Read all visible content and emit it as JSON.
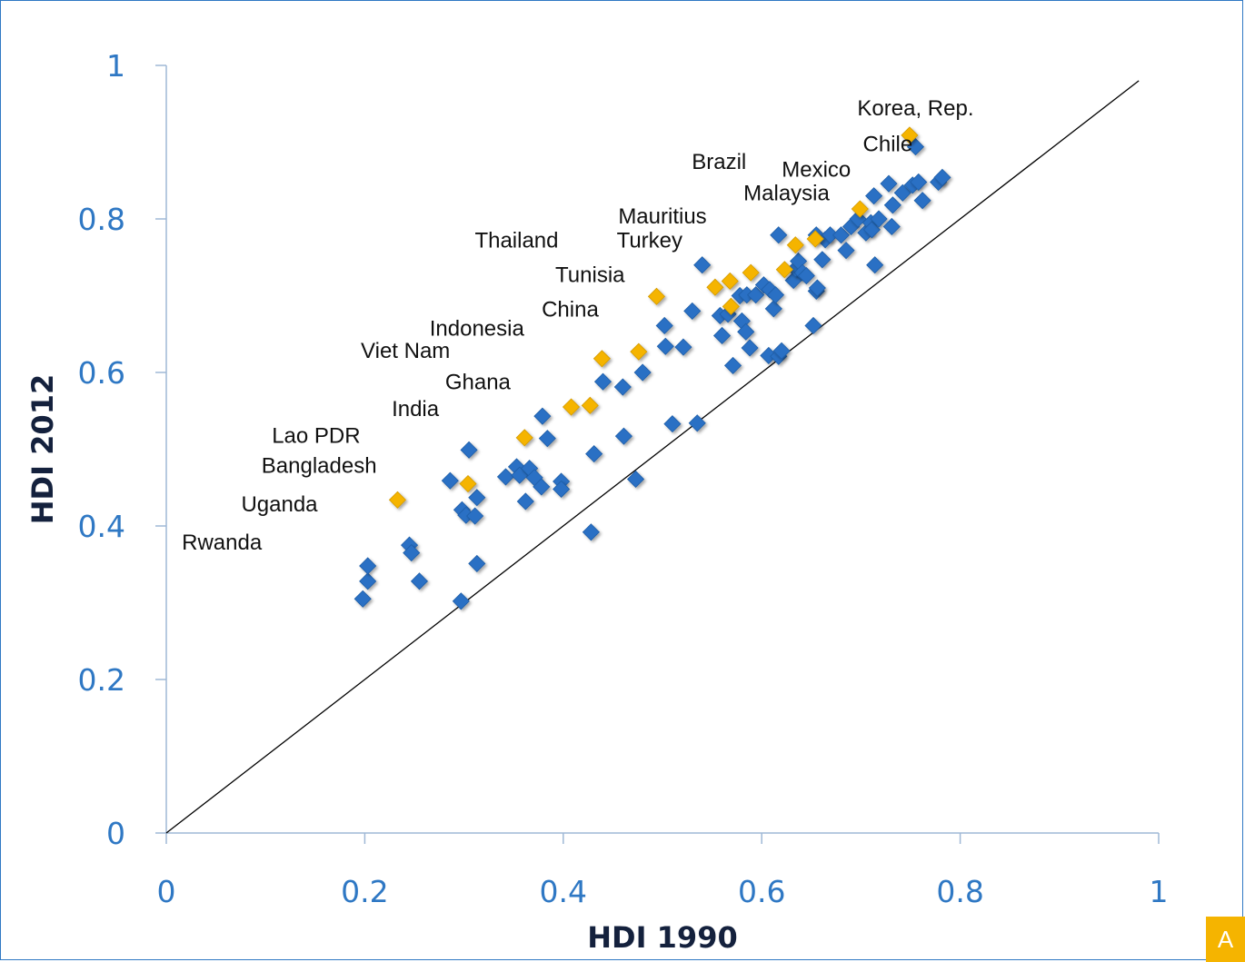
{
  "chart_data": {
    "type": "scatter",
    "xlabel": "HDI 1990",
    "ylabel": "HDI 2012",
    "xlim": [
      0,
      1
    ],
    "ylim": [
      0,
      1
    ],
    "x_ticks": [
      "0",
      "0.2",
      "0.4",
      "0.6",
      "0.8",
      "1"
    ],
    "y_ticks": [
      "0",
      "0.2",
      "0.4",
      "0.6",
      "0.8",
      "1"
    ],
    "grid": false,
    "reference_line": "y = x",
    "colors": {
      "axis": "#9fb8d6",
      "ticks": "#2f78c4",
      "others": "#2a6fc4",
      "highlighted": "#f5b400",
      "line": "#000000"
    },
    "series": [
      {
        "points": [
          [
            0.198,
            0.305
          ],
          [
            0.203,
            0.328
          ],
          [
            0.203,
            0.348
          ],
          [
            0.245,
            0.375
          ],
          [
            0.247,
            0.365
          ],
          [
            0.255,
            0.328
          ],
          [
            0.286,
            0.459
          ],
          [
            0.297,
            0.302
          ],
          [
            0.298,
            0.421
          ],
          [
            0.302,
            0.414
          ],
          [
            0.305,
            0.499
          ],
          [
            0.311,
            0.413
          ],
          [
            0.313,
            0.437
          ],
          [
            0.313,
            0.351
          ],
          [
            0.342,
            0.464
          ],
          [
            0.353,
            0.477
          ],
          [
            0.356,
            0.466
          ],
          [
            0.362,
            0.432
          ],
          [
            0.366,
            0.475
          ],
          [
            0.371,
            0.463
          ],
          [
            0.378,
            0.451
          ],
          [
            0.379,
            0.543
          ],
          [
            0.384,
            0.514
          ],
          [
            0.398,
            0.458
          ],
          [
            0.398,
            0.448
          ],
          [
            0.428,
            0.392
          ],
          [
            0.431,
            0.494
          ],
          [
            0.44,
            0.588
          ],
          [
            0.46,
            0.581
          ],
          [
            0.461,
            0.517
          ],
          [
            0.473,
            0.461
          ],
          [
            0.48,
            0.6
          ],
          [
            0.502,
            0.661
          ],
          [
            0.503,
            0.634
          ],
          [
            0.51,
            0.533
          ],
          [
            0.521,
            0.633
          ],
          [
            0.53,
            0.68
          ],
          [
            0.535,
            0.534
          ],
          [
            0.54,
            0.74
          ],
          [
            0.558,
            0.674
          ],
          [
            0.56,
            0.648
          ],
          [
            0.566,
            0.676
          ],
          [
            0.571,
            0.609
          ],
          [
            0.578,
            0.7
          ],
          [
            0.58,
            0.667
          ],
          [
            0.584,
            0.653
          ],
          [
            0.585,
            0.701
          ],
          [
            0.588,
            0.632
          ],
          [
            0.594,
            0.701
          ],
          [
            0.602,
            0.714
          ],
          [
            0.607,
            0.622
          ],
          [
            0.608,
            0.708
          ],
          [
            0.612,
            0.683
          ],
          [
            0.614,
            0.701
          ],
          [
            0.617,
            0.779
          ],
          [
            0.617,
            0.621
          ],
          [
            0.62,
            0.628
          ],
          [
            0.632,
            0.72
          ],
          [
            0.634,
            0.735
          ],
          [
            0.637,
            0.745
          ],
          [
            0.641,
            0.73
          ],
          [
            0.645,
            0.726
          ],
          [
            0.652,
            0.661
          ],
          [
            0.655,
            0.779
          ],
          [
            0.655,
            0.706
          ],
          [
            0.656,
            0.71
          ],
          [
            0.661,
            0.747
          ],
          [
            0.664,
            0.773
          ],
          [
            0.669,
            0.779
          ],
          [
            0.68,
            0.779
          ],
          [
            0.685,
            0.759
          ],
          [
            0.69,
            0.79
          ],
          [
            0.697,
            0.8
          ],
          [
            0.705,
            0.782
          ],
          [
            0.71,
            0.795
          ],
          [
            0.711,
            0.786
          ],
          [
            0.713,
            0.83
          ],
          [
            0.714,
            0.74
          ],
          [
            0.718,
            0.8
          ],
          [
            0.728,
            0.846
          ],
          [
            0.731,
            0.79
          ],
          [
            0.732,
            0.818
          ],
          [
            0.742,
            0.834
          ],
          [
            0.752,
            0.844
          ],
          [
            0.755,
            0.894
          ],
          [
            0.758,
            0.848
          ],
          [
            0.762,
            0.824
          ],
          [
            0.778,
            0.848
          ],
          [
            0.782,
            0.854
          ]
        ]
      },
      {
        "points": [
          [
            0.233,
            0.434
          ],
          [
            0.304,
            0.455
          ],
          [
            0.361,
            0.515
          ],
          [
            0.408,
            0.555
          ],
          [
            0.427,
            0.557
          ],
          [
            0.439,
            0.618
          ],
          [
            0.476,
            0.627
          ],
          [
            0.494,
            0.699
          ],
          [
            0.553,
            0.711
          ],
          [
            0.568,
            0.719
          ],
          [
            0.569,
            0.686
          ],
          [
            0.589,
            0.73
          ],
          [
            0.623,
            0.734
          ],
          [
            0.634,
            0.766
          ],
          [
            0.654,
            0.774
          ],
          [
            0.699,
            0.813
          ],
          [
            0.749,
            0.909
          ]
        ]
      }
    ],
    "annotations": [
      {
        "text": "Korea, Rep.",
        "x": 0.755,
        "y": 0.935
      },
      {
        "text": "Chile",
        "x": 0.727,
        "y": 0.888
      },
      {
        "text": "Mexico",
        "x": 0.655,
        "y": 0.855
      },
      {
        "text": "Brazil",
        "x": 0.557,
        "y": 0.865
      },
      {
        "text": "Malaysia",
        "x": 0.625,
        "y": 0.824
      },
      {
        "text": "Mauritius",
        "x": 0.5,
        "y": 0.794
      },
      {
        "text": "Thailand",
        "x": 0.353,
        "y": 0.763
      },
      {
        "text": "Turkey",
        "x": 0.487,
        "y": 0.763
      },
      {
        "text": "Tunisia",
        "x": 0.427,
        "y": 0.718
      },
      {
        "text": "China",
        "x": 0.407,
        "y": 0.673
      },
      {
        "text": "Indonesia",
        "x": 0.313,
        "y": 0.648
      },
      {
        "text": "Viet Nam",
        "x": 0.241,
        "y": 0.619
      },
      {
        "text": "Ghana",
        "x": 0.314,
        "y": 0.578
      },
      {
        "text": "India",
        "x": 0.251,
        "y": 0.543
      },
      {
        "text": "Lao PDR",
        "x": 0.151,
        "y": 0.508
      },
      {
        "text": "Bangladesh",
        "x": 0.154,
        "y": 0.469
      },
      {
        "text": "Uganda",
        "x": 0.114,
        "y": 0.419
      },
      {
        "text": "Rwanda",
        "x": 0.056,
        "y": 0.369
      }
    ]
  },
  "corner_badge": "A"
}
